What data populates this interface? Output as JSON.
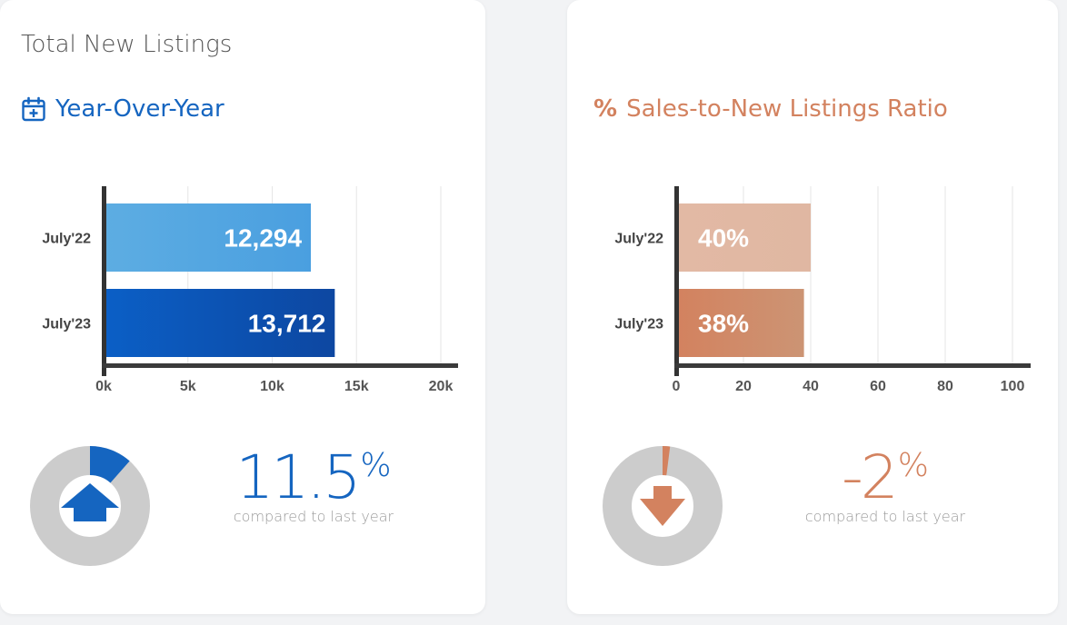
{
  "left_card": {
    "title": "Total New Listings",
    "subtitle": "Year-Over-Year",
    "icon": "calendar-plus-icon",
    "kpi": {
      "value": "11.5",
      "unit": "%",
      "caption": "compared to last year",
      "direction": "up",
      "donut_fraction": 0.115
    }
  },
  "right_card": {
    "subtitle": "Sales-to-New Listings Ratio",
    "icon": "percent-icon",
    "icon_glyph": "%",
    "kpi": {
      "value": "-2",
      "unit": "%",
      "caption": "compared to last year",
      "direction": "down",
      "donut_fraction": 0.02
    }
  },
  "colors": {
    "blue": "#1565c0",
    "blue_light": "#5dade2",
    "blue_dark": "#0d47a1",
    "orange": "#d3825f",
    "orange_light": "#e2b9a4",
    "grey": "#cccccc",
    "axis": "#333333",
    "grid": "#e6e6e6"
  },
  "chart_data": [
    {
      "type": "bar",
      "orientation": "horizontal",
      "categories": [
        "July'22",
        "July'23"
      ],
      "values": [
        12294,
        13712
      ],
      "value_labels": [
        "12,294",
        "13,712"
      ],
      "xlim": [
        0,
        20000
      ],
      "x_ticks": [
        0,
        5000,
        10000,
        15000,
        20000
      ],
      "x_tick_labels": [
        "0k",
        "5k",
        "10k",
        "15k",
        "20k"
      ],
      "grid": true
    },
    {
      "type": "bar",
      "orientation": "horizontal",
      "categories": [
        "July'22",
        "July'23"
      ],
      "values": [
        40,
        38
      ],
      "value_labels": [
        "40%",
        "38%"
      ],
      "xlim": [
        0,
        100
      ],
      "x_ticks": [
        0,
        20,
        40,
        60,
        80,
        100
      ],
      "x_tick_labels": [
        "0",
        "20",
        "40",
        "60",
        "80",
        "100"
      ],
      "grid": true
    }
  ]
}
